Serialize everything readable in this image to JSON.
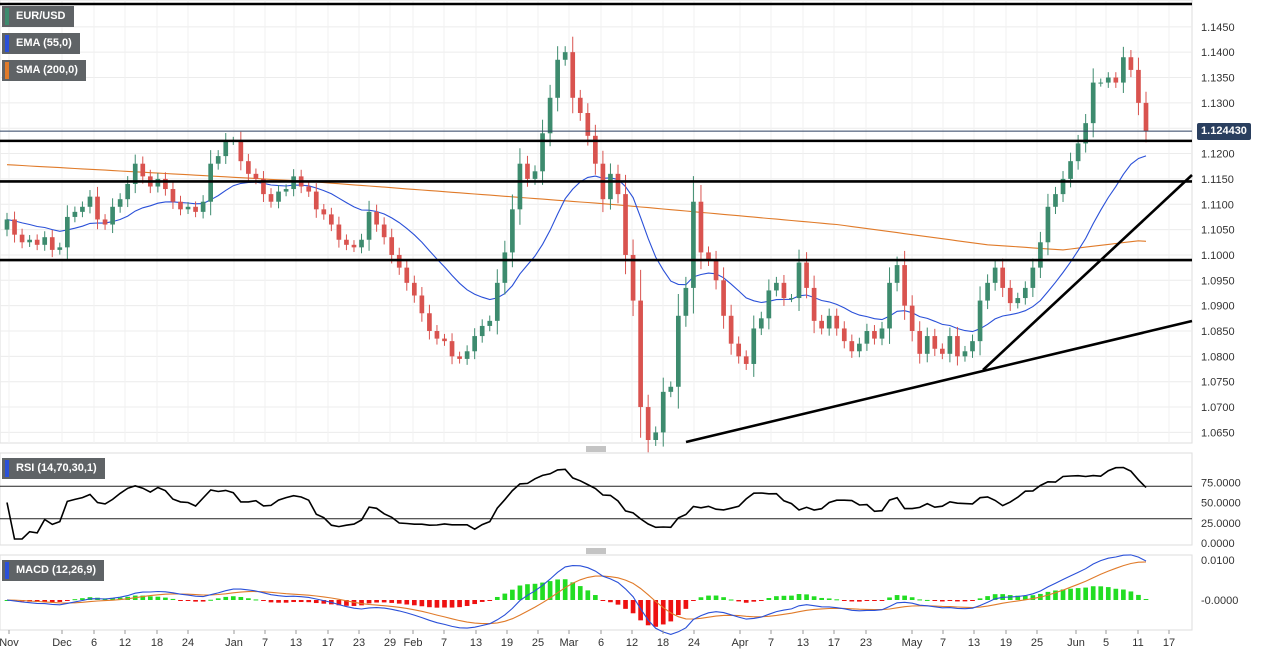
{
  "legends": {
    "symbol": "EUR/USD",
    "ema": "EMA (55,0)",
    "sma": "SMA (200,0)",
    "rsi": "RSI (14,70,30,1)",
    "macd": "MACD (12,26,9)"
  },
  "current_price_label": "1.124430",
  "colors": {
    "bull": "#3d8b6e",
    "bear": "#d9534f",
    "ema": "#2a50d8",
    "sma": "#e07b2a",
    "macd_line": "#2a50d8",
    "signal_line": "#e07b2a",
    "hist_pos": "#22dd22",
    "hist_neg": "#ee1111",
    "trendlines": "#000000",
    "current_price_line": "#2a3f5f",
    "legend_symbol": "#3d8b6e",
    "legend_ema": "#2a50d8",
    "legend_sma": "#e07b2a",
    "legend_rsi": "#2a50d8",
    "legend_macd": "#2a50d8"
  },
  "chart_data": [
    {
      "type": "candlestick",
      "title": "EUR/USD",
      "y_ticks": [
        "1.1450",
        "1.1400",
        "1.1350",
        "1.1300",
        "1.1250",
        "1.1200",
        "1.1150",
        "1.1100",
        "1.1050",
        "1.1000",
        "1.0950",
        "1.0900",
        "1.0850",
        "1.0800",
        "1.0750",
        "1.0700",
        "1.0650"
      ],
      "ylim": [
        1.0635,
        1.1495
      ],
      "x_ticks": [
        "Nov",
        "Dec",
        "6",
        "12",
        "18",
        "24",
        "Jan",
        "7",
        "13",
        "17",
        "23",
        "29",
        "Feb",
        "7",
        "13",
        "19",
        "25",
        "Mar",
        "6",
        "12",
        "18",
        "24",
        "Apr",
        "7",
        "13",
        "17",
        "23",
        "May",
        "7",
        "13",
        "19",
        "25",
        "Jun",
        "5",
        "11",
        "17"
      ],
      "current_price": 1.12443,
      "close": [
        1.107,
        1.104,
        1.1025,
        1.103,
        1.102,
        1.1035,
        1.101,
        1.1015,
        1.1075,
        1.1085,
        1.1095,
        1.1115,
        1.107,
        1.106,
        1.1095,
        1.111,
        1.114,
        1.118,
        1.1155,
        1.1135,
        1.115,
        1.113,
        1.1105,
        1.109,
        1.1095,
        1.1085,
        1.1105,
        1.118,
        1.1195,
        1.1225,
        1.1225,
        1.1185,
        1.116,
        1.115,
        1.112,
        1.1105,
        1.1125,
        1.113,
        1.1155,
        1.1135,
        1.1125,
        1.109,
        1.108,
        1.106,
        1.103,
        1.102,
        1.1015,
        1.103,
        1.1085,
        1.106,
        1.1035,
        1.1,
        1.0975,
        1.0945,
        1.092,
        1.0885,
        1.085,
        1.0835,
        1.083,
        1.08,
        1.0795,
        1.081,
        1.084,
        1.086,
        1.087,
        1.0945,
        1.1005,
        1.109,
        1.118,
        1.115,
        1.1165,
        1.124,
        1.131,
        1.1385,
        1.14,
        1.131,
        1.128,
        1.1235,
        1.118,
        1.111,
        1.116,
        1.112,
        1.1,
        1.091,
        1.07,
        1.0635,
        1.065,
        1.073,
        1.074,
        1.088,
        1.0935,
        1.1105,
        1.1005,
        1.099,
        1.095,
        1.088,
        1.0825,
        1.08,
        1.0785,
        1.0855,
        1.0875,
        1.093,
        1.0945,
        1.0915,
        1.0915,
        1.0985,
        1.0935,
        1.087,
        1.0855,
        1.088,
        1.0855,
        1.083,
        1.081,
        1.0825,
        1.085,
        1.0835,
        1.0855,
        1.0945,
        1.098,
        1.09,
        1.085,
        1.0805,
        1.084,
        1.0815,
        1.0805,
        1.084,
        1.08,
        1.081,
        1.083,
        1.091,
        1.0945,
        1.0975,
        1.0935,
        1.0905,
        1.0915,
        1.0935,
        1.0975,
        1.1025,
        1.1095,
        1.112,
        1.115,
        1.1185,
        1.122,
        1.126,
        1.134,
        1.134,
        1.135,
        1.134,
        1.139,
        1.1365,
        1.13,
        1.1244
      ],
      "series": [
        {
          "name": "EMA (55,0)"
        },
        {
          "name": "SMA (200,0)"
        }
      ]
    },
    {
      "type": "line",
      "title": "RSI (14,70,30,1)",
      "y_ticks": [
        "75.0000",
        "50.0000",
        "25.0000",
        "0.0000"
      ],
      "ylim": [
        0,
        100
      ],
      "levels": [
        70,
        30
      ]
    },
    {
      "type": "line",
      "title": "MACD (12,26,9)",
      "y_ticks": [
        "0.0100",
        "-0.0000"
      ],
      "series": [
        {
          "name": "MACD"
        },
        {
          "name": "Signal"
        },
        {
          "name": "Histogram"
        }
      ]
    }
  ]
}
